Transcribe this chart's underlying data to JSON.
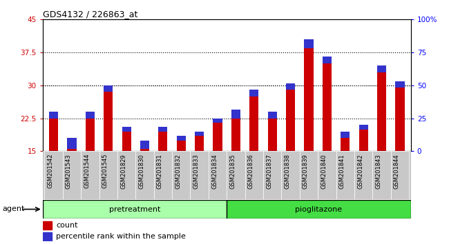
{
  "title": "GDS4132 / 226863_at",
  "samples": [
    "GSM201542",
    "GSM201543",
    "GSM201544",
    "GSM201545",
    "GSM201829",
    "GSM201830",
    "GSM201831",
    "GSM201832",
    "GSM201833",
    "GSM201834",
    "GSM201835",
    "GSM201836",
    "GSM201837",
    "GSM201838",
    "GSM201839",
    "GSM201840",
    "GSM201841",
    "GSM201842",
    "GSM201843",
    "GSM201844"
  ],
  "red_values": [
    22.5,
    15.5,
    22.5,
    28.5,
    19.5,
    15.5,
    19.5,
    17.5,
    18.5,
    21.5,
    22.5,
    27.5,
    22.5,
    29.0,
    38.5,
    35.0,
    18.0,
    20.0,
    33.0,
    29.5
  ],
  "blue_values": [
    1.5,
    2.5,
    1.5,
    1.5,
    1.0,
    2.0,
    1.0,
    1.0,
    1.0,
    1.0,
    2.0,
    1.5,
    1.5,
    1.5,
    2.0,
    1.5,
    1.5,
    1.0,
    1.5,
    1.5
  ],
  "red_color": "#cc0000",
  "blue_color": "#3333cc",
  "plot_bg": "#ffffff",
  "ylim_left": [
    15,
    45
  ],
  "ylim_right": [
    0,
    100
  ],
  "yticks_left": [
    15,
    22.5,
    30,
    37.5,
    45
  ],
  "yticks_right": [
    0,
    25,
    50,
    75,
    100
  ],
  "ytick_labels_left": [
    "15",
    "22.5",
    "30",
    "37.5",
    "45"
  ],
  "ytick_labels_right": [
    "0",
    "25",
    "50",
    "75",
    "100%"
  ],
  "grid_values": [
    22.5,
    30.0,
    37.5
  ],
  "pretreatment_samples": 10,
  "pretreatment_label": "pretreatment",
  "pioglitazone_label": "pioglitazone",
  "agent_label": "agent",
  "legend_red": "count",
  "legend_blue": "percentile rank within the sample",
  "pretreatment_color": "#aaffaa",
  "pioglitazone_color": "#44dd44",
  "tick_label_bg": "#c8c8c8",
  "bar_width": 0.5
}
